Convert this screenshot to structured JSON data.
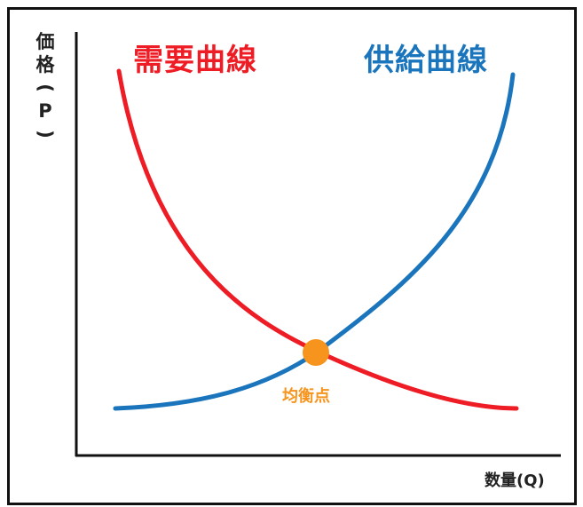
{
  "y_axis": {
    "label_chars": [
      "価",
      "格",
      "(",
      "P",
      ")"
    ]
  },
  "x_axis": {
    "label": "数量(Q)"
  },
  "demand": {
    "label": "需要曲線",
    "color": "#ee1c25"
  },
  "supply": {
    "label": "供給曲線",
    "color": "#1a75bc"
  },
  "equilibrium": {
    "label": "均衡点",
    "color": "#f7941d"
  }
}
